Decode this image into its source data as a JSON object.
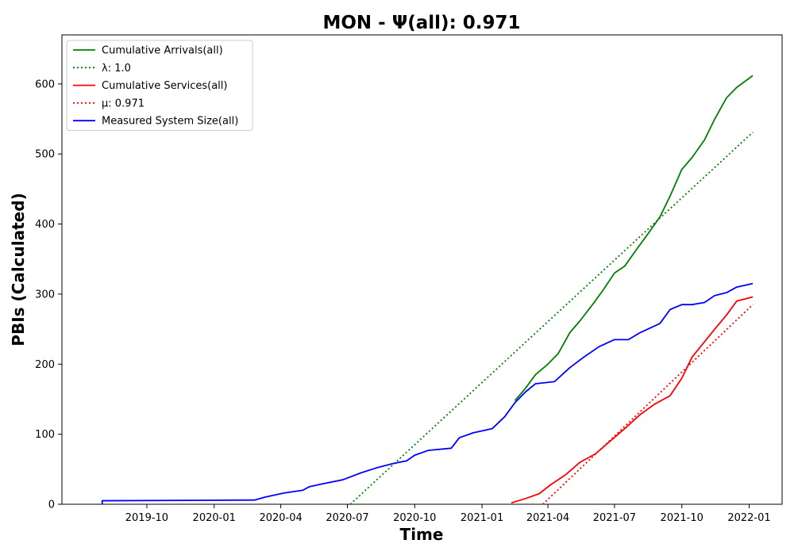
{
  "chart_data": {
    "type": "line",
    "title": "MON -  Ψ(all): 0.971",
    "xlabel": "Time",
    "ylabel": "PBIs (Calculated)",
    "xlim": [
      "2019-06-07",
      "2022-02-15"
    ],
    "ylim": [
      0,
      670
    ],
    "grid": false,
    "legend_position": "top-left",
    "x_ticks": [
      "2019-10",
      "2020-01",
      "2020-04",
      "2020-07",
      "2020-10",
      "2021-01",
      "2021-04",
      "2021-07",
      "2021-10",
      "2022-01"
    ],
    "y_ticks": [
      0,
      100,
      200,
      300,
      400,
      500,
      600
    ],
    "series": [
      {
        "name": "Cumulative Arrivals(all)",
        "color": "#008000",
        "dash": "solid",
        "points": [
          [
            "2021-02-15",
            148
          ],
          [
            "2021-03-01",
            165
          ],
          [
            "2021-03-15",
            185
          ],
          [
            "2021-04-01",
            200
          ],
          [
            "2021-04-15",
            215
          ],
          [
            "2021-05-01",
            245
          ],
          [
            "2021-05-15",
            262
          ],
          [
            "2021-06-01",
            285
          ],
          [
            "2021-06-15",
            305
          ],
          [
            "2021-07-01",
            330
          ],
          [
            "2021-07-15",
            340
          ],
          [
            "2021-08-01",
            365
          ],
          [
            "2021-08-15",
            385
          ],
          [
            "2021-09-01",
            410
          ],
          [
            "2021-09-15",
            440
          ],
          [
            "2021-10-01",
            478
          ],
          [
            "2021-10-15",
            495
          ],
          [
            "2021-11-01",
            520
          ],
          [
            "2021-11-15",
            550
          ],
          [
            "2021-12-01",
            580
          ],
          [
            "2021-12-15",
            595
          ],
          [
            "2022-01-01",
            608
          ],
          [
            "2022-01-06",
            612
          ]
        ]
      },
      {
        "name": "λ: 1.0",
        "color": "#008000",
        "dash": "dotted",
        "points": [
          [
            "2020-07-05",
            0
          ],
          [
            "2022-01-06",
            531
          ]
        ]
      },
      {
        "name": "Cumulative Services(all)",
        "color": "#ff0000",
        "dash": "solid",
        "points": [
          [
            "2021-02-10",
            2
          ],
          [
            "2021-03-01",
            8
          ],
          [
            "2021-03-20",
            15
          ],
          [
            "2021-04-05",
            28
          ],
          [
            "2021-04-25",
            42
          ],
          [
            "2021-05-15",
            60
          ],
          [
            "2021-06-05",
            72
          ],
          [
            "2021-06-25",
            90
          ],
          [
            "2021-07-15",
            108
          ],
          [
            "2021-08-05",
            128
          ],
          [
            "2021-08-25",
            143
          ],
          [
            "2021-09-15",
            155
          ],
          [
            "2021-10-01",
            180
          ],
          [
            "2021-10-15",
            210
          ],
          [
            "2021-11-01",
            232
          ],
          [
            "2021-11-15",
            250
          ],
          [
            "2021-12-01",
            270
          ],
          [
            "2021-12-15",
            290
          ],
          [
            "2022-01-06",
            296
          ]
        ]
      },
      {
        "name": "μ: 0.971",
        "color": "#ff0000",
        "dash": "dotted",
        "points": [
          [
            "2021-03-25",
            0
          ],
          [
            "2022-01-06",
            285
          ]
        ]
      },
      {
        "name": "Measured System Size(all)",
        "color": "#0000ff",
        "dash": "solid",
        "points": [
          [
            "2019-08-01",
            0
          ],
          [
            "2019-08-01",
            5
          ],
          [
            "2020-02-25",
            6
          ],
          [
            "2020-03-10",
            10
          ],
          [
            "2020-04-05",
            16
          ],
          [
            "2020-05-01",
            20
          ],
          [
            "2020-05-10",
            25
          ],
          [
            "2020-06-01",
            30
          ],
          [
            "2020-06-25",
            35
          ],
          [
            "2020-07-20",
            45
          ],
          [
            "2020-08-10",
            52
          ],
          [
            "2020-09-01",
            58
          ],
          [
            "2020-09-20",
            62
          ],
          [
            "2020-10-01",
            70
          ],
          [
            "2020-10-20",
            77
          ],
          [
            "2020-11-20",
            80
          ],
          [
            "2020-12-01",
            95
          ],
          [
            "2020-12-20",
            102
          ],
          [
            "2021-01-15",
            108
          ],
          [
            "2021-02-01",
            125
          ],
          [
            "2021-02-15",
            145
          ],
          [
            "2021-03-01",
            160
          ],
          [
            "2021-03-15",
            172
          ],
          [
            "2021-04-10",
            175
          ],
          [
            "2021-05-01",
            195
          ],
          [
            "2021-05-20",
            210
          ],
          [
            "2021-06-10",
            225
          ],
          [
            "2021-07-01",
            235
          ],
          [
            "2021-07-20",
            235
          ],
          [
            "2021-08-05",
            245
          ],
          [
            "2021-09-01",
            258
          ],
          [
            "2021-09-15",
            278
          ],
          [
            "2021-10-01",
            285
          ],
          [
            "2021-10-15",
            285
          ],
          [
            "2021-11-01",
            288
          ],
          [
            "2021-11-15",
            298
          ],
          [
            "2021-12-01",
            302
          ],
          [
            "2021-12-15",
            310
          ],
          [
            "2022-01-06",
            315
          ]
        ]
      }
    ]
  }
}
